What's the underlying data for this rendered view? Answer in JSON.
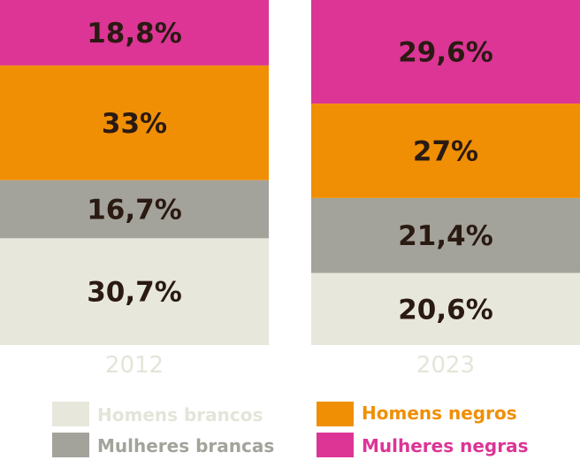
{
  "chart_data": {
    "type": "bar",
    "stacked": true,
    "normalized_100": true,
    "categories": [
      "2012",
      "2023"
    ],
    "series": [
      {
        "name": "Homens brancos",
        "color": "#e7e7dc",
        "values": [
          30.7,
          20.6
        ],
        "labels": [
          "30,7%",
          "20,6%"
        ]
      },
      {
        "name": "Mulheres brancas",
        "color": "#a3a39b",
        "values": [
          16.7,
          21.4
        ],
        "labels": [
          "16,7%",
          "21,4%"
        ]
      },
      {
        "name": "Homens negros",
        "color": "#f08f04",
        "values": [
          33,
          27
        ],
        "labels": [
          "33%",
          "27%"
        ]
      },
      {
        "name": "Mulheres negras",
        "color": "#dc3596",
        "values": [
          18.8,
          29.6
        ],
        "labels": [
          "18,8%",
          "29,6%"
        ]
      }
    ],
    "legend_placement": "bottom",
    "grid": false,
    "legend_text_colors": [
      "#e4e4d9",
      "#a3a39b",
      "#f08f04",
      "#dc3596"
    ],
    "label_color": "#2a1a12",
    "year_label_color": "#e4e4d9"
  }
}
